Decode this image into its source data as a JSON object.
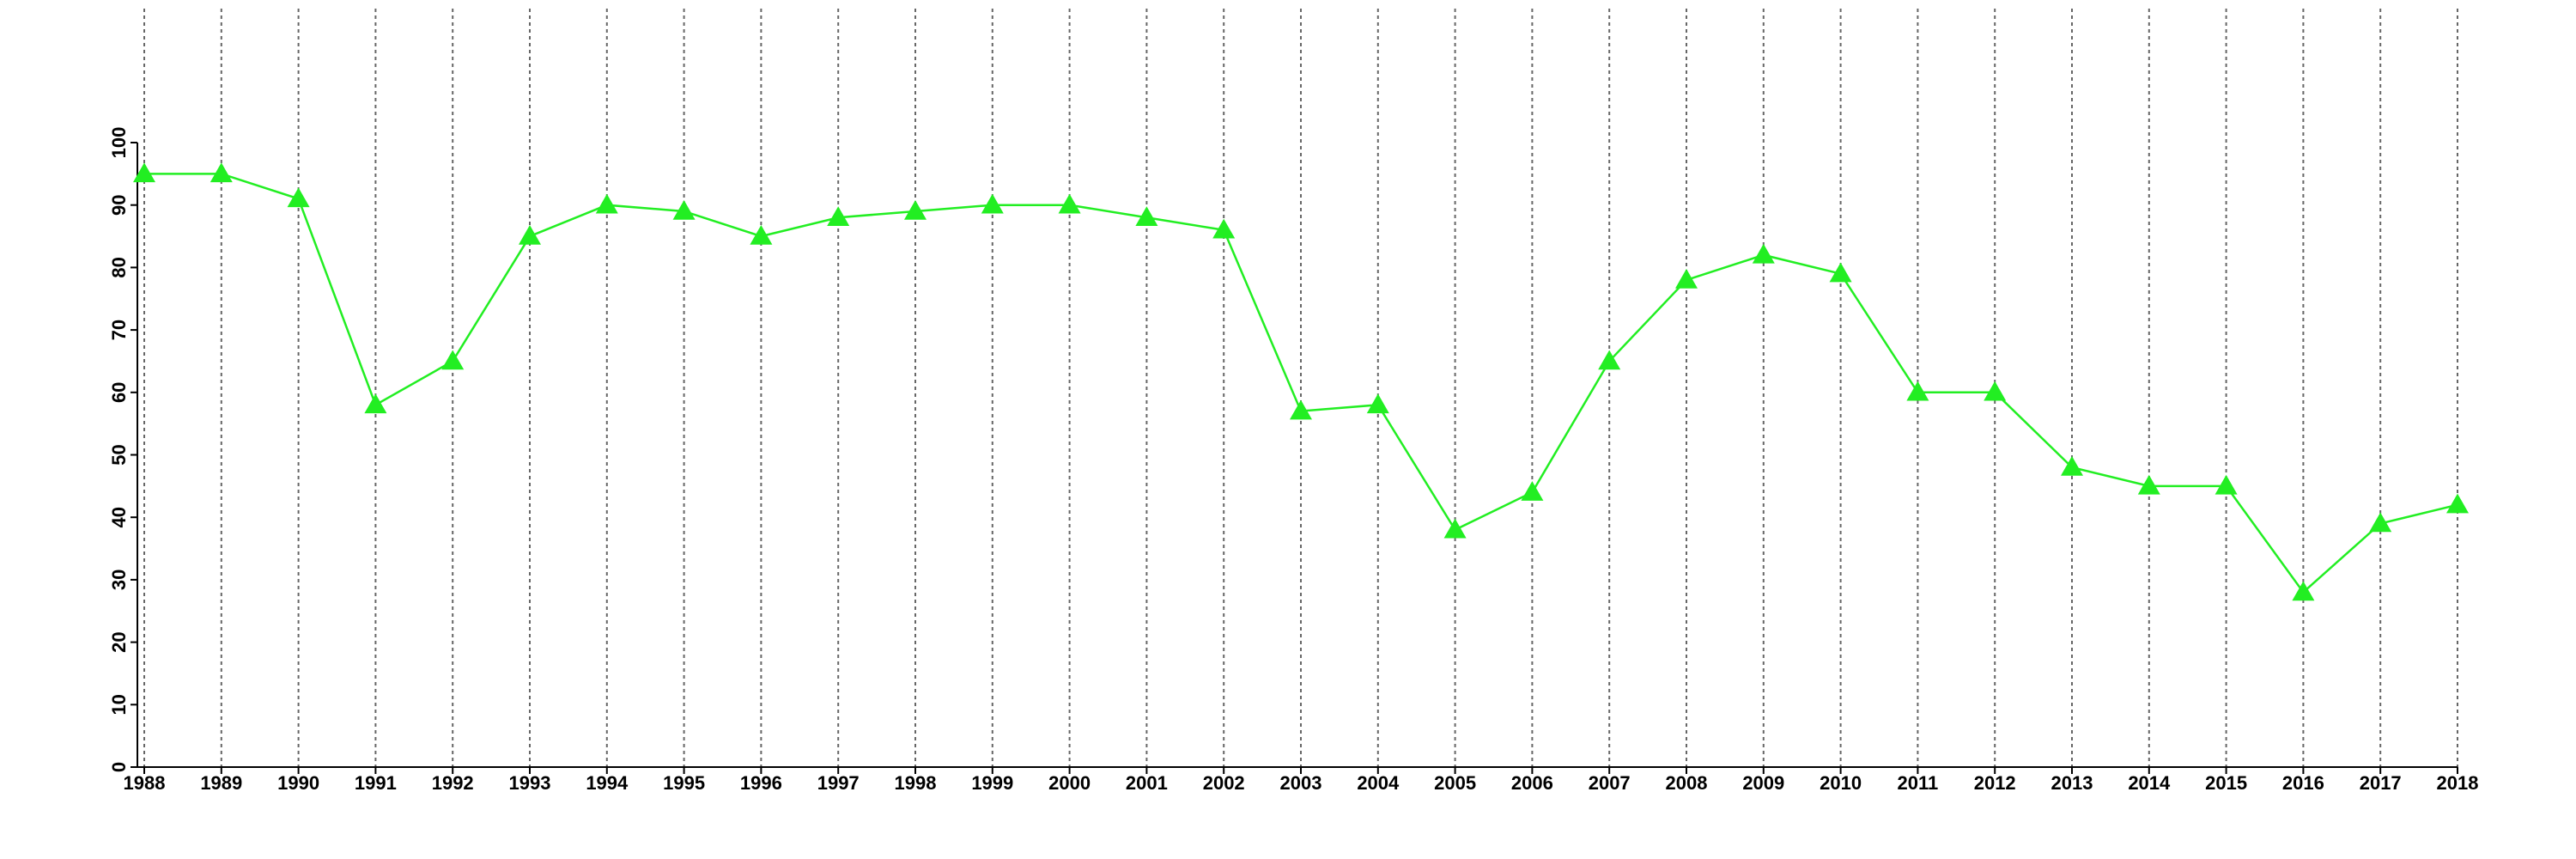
{
  "chart_data": {
    "type": "line",
    "x": [
      1988,
      1989,
      1990,
      1991,
      1992,
      1993,
      1994,
      1995,
      1996,
      1997,
      1998,
      1999,
      2000,
      2001,
      2002,
      2003,
      2004,
      2005,
      2006,
      2007,
      2008,
      2009,
      2010,
      2011,
      2012,
      2013,
      2014,
      2015,
      2016,
      2017,
      2018
    ],
    "series": [
      {
        "color": "#22ee22",
        "marker": "triangle",
        "values": [
          95,
          95,
          91,
          58,
          65,
          85,
          90,
          89,
          85,
          88,
          89,
          90,
          90,
          88,
          86,
          57,
          58,
          38,
          44,
          65,
          78,
          82,
          79,
          60,
          60,
          48,
          45,
          45,
          28,
          39,
          42
        ]
      }
    ],
    "xlim": [
      1988,
      2018
    ],
    "xticks": [
      1988,
      1989,
      1990,
      1991,
      1992,
      1993,
      1994,
      1995,
      1996,
      1997,
      1998,
      1999,
      2000,
      2001,
      2002,
      2003,
      2004,
      2005,
      2006,
      2007,
      2008,
      2009,
      2010,
      2011,
      2012,
      2013,
      2014,
      2015,
      2016,
      2017,
      2018
    ],
    "ylim": [
      0,
      100
    ],
    "yticks": [
      0,
      10,
      20,
      30,
      40,
      50,
      60,
      70,
      80,
      90,
      100
    ],
    "grid": "x"
  }
}
